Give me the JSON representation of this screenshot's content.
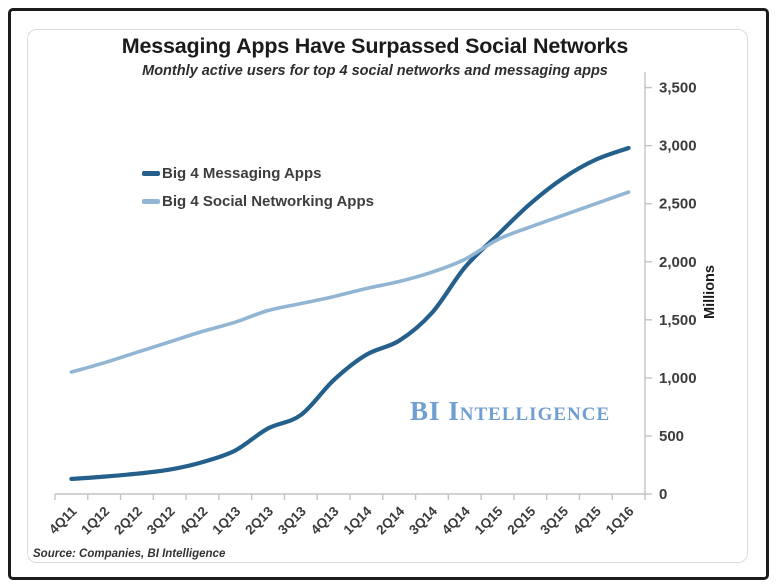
{
  "title": "Messaging Apps Have Surpassed Social Networks",
  "subtitle": "Monthly active users for top 4 social networks and messaging apps",
  "watermark": "BI Intelligence",
  "source": "Source: Companies, BI Intelligence",
  "y_axis": {
    "label": "Millions",
    "ticks": [
      {
        "value": 0,
        "label": "0"
      },
      {
        "value": 500,
        "label": "500"
      },
      {
        "value": 1000,
        "label": "1,000"
      },
      {
        "value": 1500,
        "label": "1,500"
      },
      {
        "value": 2000,
        "label": "2,000"
      },
      {
        "value": 2500,
        "label": "2,500"
      },
      {
        "value": 3000,
        "label": "3,000"
      },
      {
        "value": 3500,
        "label": "3,500"
      }
    ]
  },
  "chart_data": {
    "type": "line",
    "title": "Messaging Apps Have Surpassed Social Networks",
    "subtitle": "Monthly active users for top 4 social networks and messaging apps",
    "xlabel": "",
    "ylabel": "Millions",
    "ylim": [
      0,
      3500
    ],
    "grid": false,
    "legend_position": "top-left-inside",
    "y_axis_side": "right",
    "categories": [
      "4Q11",
      "1Q12",
      "2Q12",
      "3Q12",
      "4Q12",
      "1Q13",
      "2Q13",
      "3Q13",
      "4Q13",
      "1Q14",
      "2Q14",
      "3Q14",
      "4Q14",
      "1Q15",
      "2Q15",
      "3Q15",
      "4Q15",
      "1Q16"
    ],
    "series": [
      {
        "name": "Big 4 Messaging Apps",
        "color": "#24608b",
        "stroke_width": 4.2,
        "values": [
          130,
          150,
          175,
          210,
          275,
          375,
          565,
          680,
          980,
          1200,
          1320,
          1560,
          1950,
          2230,
          2500,
          2720,
          2880,
          2980
        ]
      },
      {
        "name": "Big 4 Social Networking Apps",
        "color": "#92b5d3",
        "stroke_width": 3.6,
        "values": [
          1050,
          1130,
          1220,
          1310,
          1400,
          1480,
          1580,
          1640,
          1700,
          1770,
          1830,
          1910,
          2020,
          2190,
          2300,
          2400,
          2500,
          2600
        ]
      }
    ]
  },
  "colors": {
    "axis_line": "#c3c3c3",
    "tick_text": "#3c3c3c",
    "millions_text": "#1a1a1a"
  }
}
